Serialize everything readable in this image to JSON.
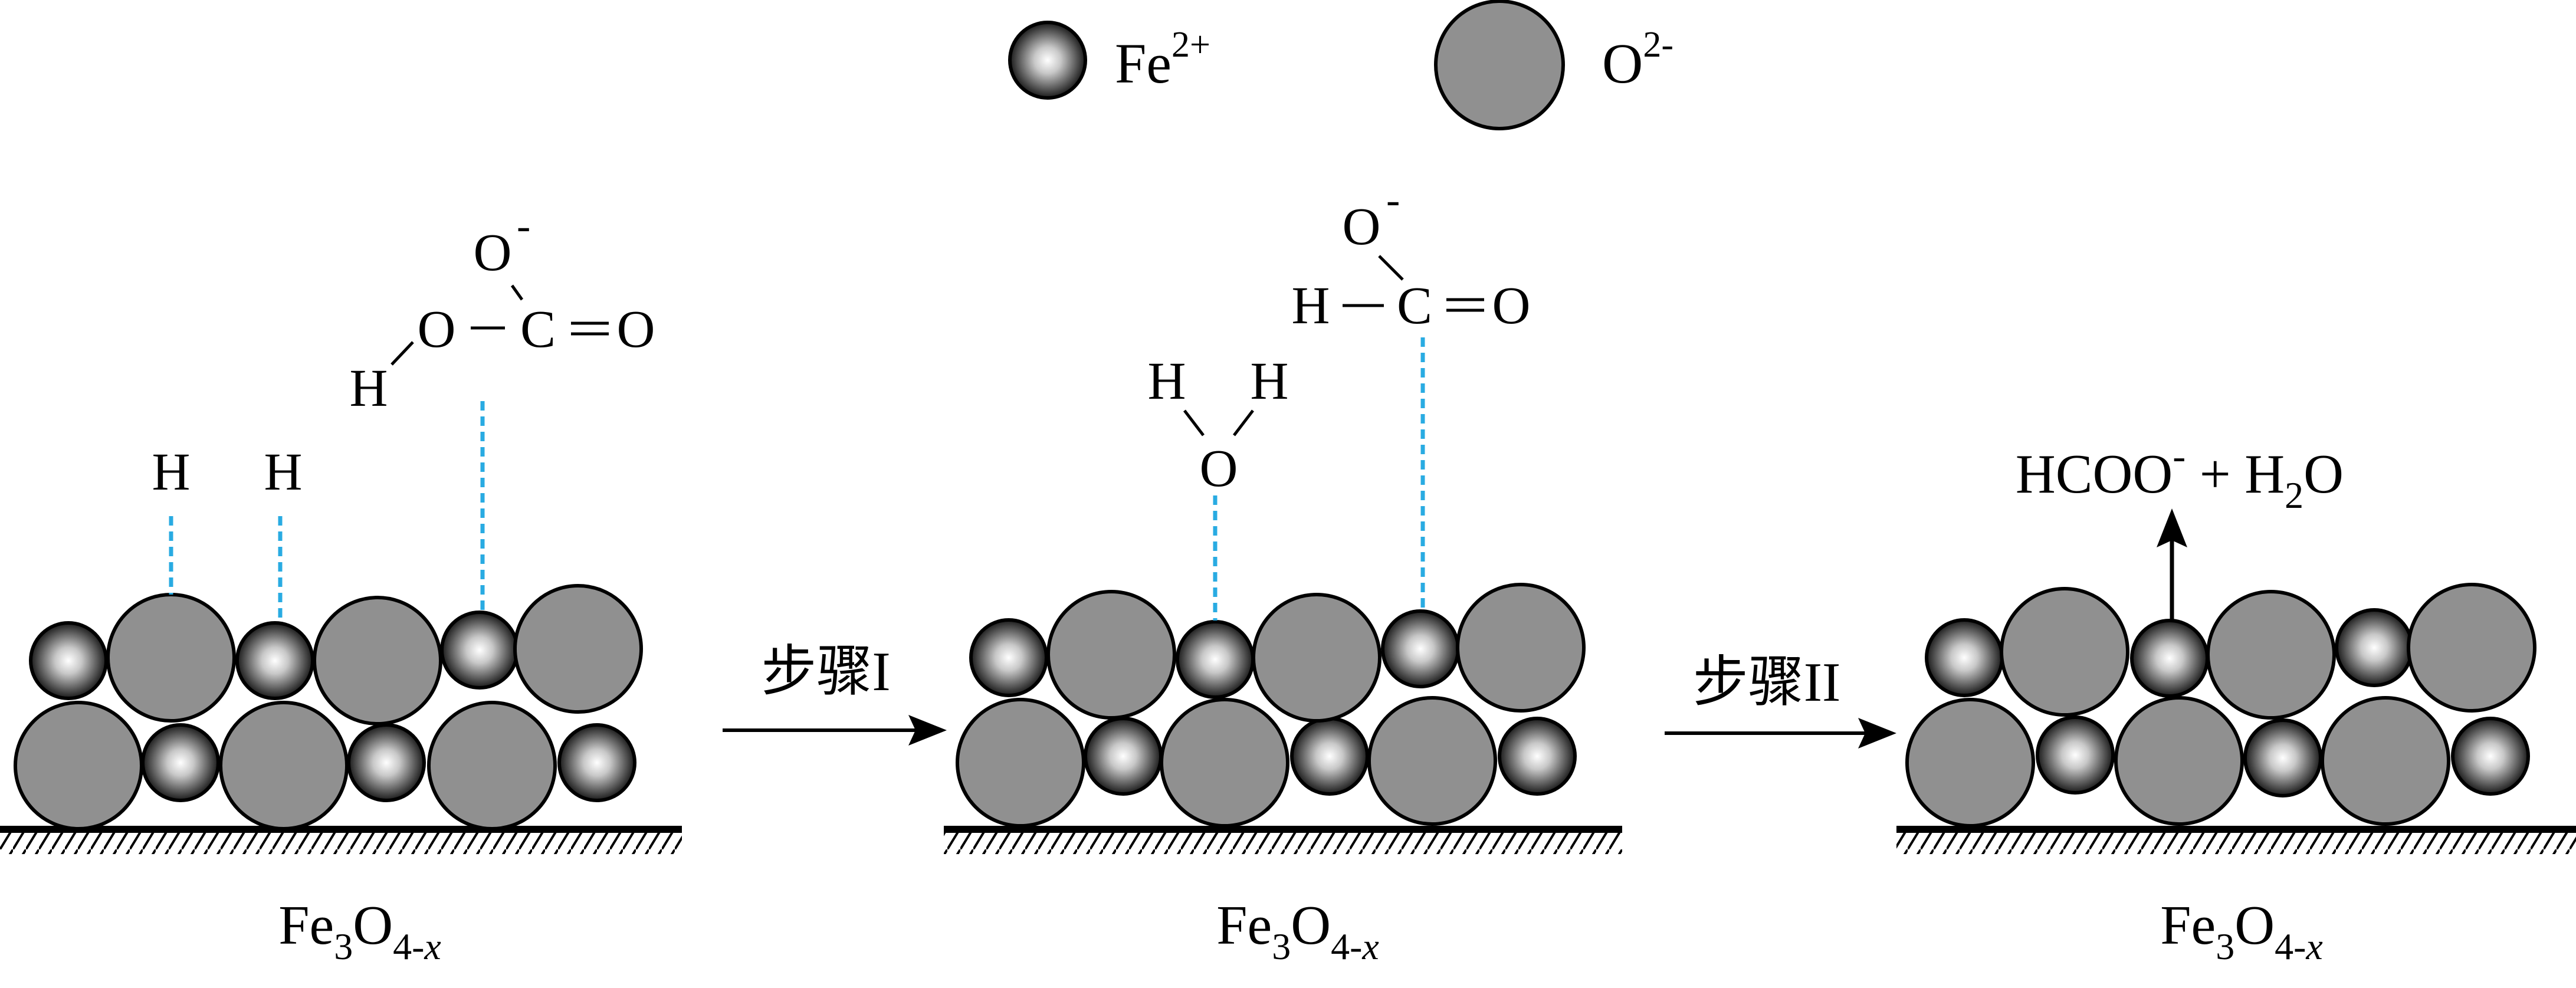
{
  "legend": {
    "fe_label": "Fe",
    "fe_charge": "2+",
    "o_label": "O",
    "o_charge": "2-"
  },
  "panel1": {
    "substrate_label": {
      "main": "Fe",
      "sub1": "3",
      "mid": "O",
      "sub2": "4-",
      "italic": "x"
    },
    "h_atom_1": "H",
    "h_atom_2": "H",
    "bicarbonate": {
      "h": "H",
      "o1": "O",
      "c": "C",
      "o2": "O",
      "o3": "O",
      "minus": "-"
    }
  },
  "step1": {
    "label": "步骤I"
  },
  "panel2": {
    "substrate_label": {
      "main": "Fe",
      "sub1": "3",
      "mid": "O",
      "sub2": "4-",
      "italic": "x"
    },
    "water": {
      "h1": "H",
      "h2": "H",
      "o": "O"
    },
    "formate": {
      "h": "H",
      "c": "C",
      "o_top": "O",
      "o_right": "O",
      "minus": "-"
    }
  },
  "step2": {
    "label": "步骤II"
  },
  "panel3": {
    "substrate_label": {
      "main": "Fe",
      "sub1": "3",
      "mid": "O",
      "sub2": "4-",
      "italic": "x"
    },
    "product": {
      "p1": "HCOO",
      "minus": "-",
      "plus": " + H",
      "sub": "2",
      "o": "O"
    }
  },
  "colors": {
    "o_ion_fill": "#909090",
    "fe_ion_center": "#ffffff",
    "fe_ion_edge": "#1a1a1a",
    "bond_dash": "#29abe2",
    "stroke": "#000000"
  }
}
